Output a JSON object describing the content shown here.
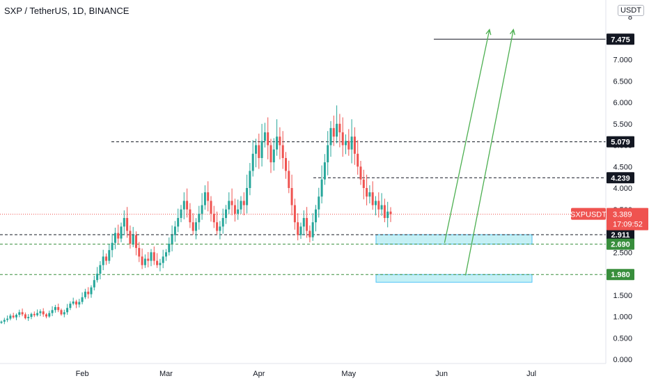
{
  "header": {
    "title": "SXP / TetherUS, 1D, BINANCE",
    "currency_button": "USDT"
  },
  "chart_data": {
    "type": "candlestick",
    "title": "SXP / TetherUS, 1D, BINANCE",
    "symbol": "SXPUSDT",
    "last_price": "3.389",
    "countdown": "17:09:52",
    "x_ticks": [
      "Feb",
      "Mar",
      "Apr",
      "May",
      "Jun",
      "Jul"
    ],
    "y_ticks": [
      "0.000",
      "0.500",
      "1.000",
      "1.500",
      "2.000",
      "2.500",
      "3.000",
      "3.500",
      "4.000",
      "4.500",
      "5.000",
      "5.500",
      "6.000",
      "6.500",
      "7.000",
      "7.500",
      "8"
    ],
    "ylim": [
      0,
      8
    ],
    "price_lines": [
      {
        "value": 7.475,
        "label": "7.475",
        "style": "solid",
        "color": "#131722"
      },
      {
        "value": 5.079,
        "label": "5.079",
        "style": "dashed",
        "color": "#131722"
      },
      {
        "value": 4.239,
        "label": "4.239",
        "style": "dashed",
        "color": "#131722"
      },
      {
        "value": 2.911,
        "label": "2.911",
        "style": "dashed",
        "color": "#131722"
      },
      {
        "value": 2.69,
        "label": "2.690",
        "style": "dashed",
        "color": "#388e3c"
      },
      {
        "value": 1.98,
        "label": "1.980",
        "style": "dashed",
        "color": "#388e3c"
      }
    ],
    "zones": [
      {
        "low": 2.69,
        "high": 2.911,
        "color": "#b2ebf2"
      },
      {
        "low": 1.8,
        "high": 1.98,
        "color": "#b2ebf2"
      }
    ],
    "colors": {
      "up": "#26a69a",
      "down": "#ef5350",
      "arrow": "#4caf50"
    },
    "closes": [
      0.88,
      0.92,
      0.95,
      1.02,
      0.98,
      1.04,
      1.1,
      1.05,
      0.96,
      0.99,
      1.06,
      1.03,
      1.08,
      1.12,
      1.05,
      1.0,
      1.08,
      1.15,
      1.22,
      1.15,
      1.05,
      1.1,
      1.2,
      1.3,
      1.35,
      1.28,
      1.34,
      1.45,
      1.58,
      1.52,
      1.68,
      1.85,
      2.0,
      2.2,
      2.4,
      2.3,
      2.55,
      2.72,
      2.95,
      2.82,
      3.1,
      3.3,
      3.0,
      2.7,
      2.9,
      2.6,
      2.4,
      2.2,
      2.35,
      2.3,
      2.5,
      2.3,
      2.2,
      2.25,
      2.4,
      2.5,
      2.7,
      2.9,
      3.1,
      3.3,
      3.5,
      3.7,
      3.5,
      3.2,
      3.0,
      3.2,
      3.4,
      3.6,
      3.9,
      3.7,
      3.4,
      3.2,
      3.0,
      3.1,
      3.3,
      3.5,
      3.7,
      3.6,
      3.4,
      3.5,
      3.7,
      3.6,
      4.0,
      4.4,
      4.8,
      5.0,
      4.7,
      5.1,
      5.3,
      5.0,
      4.6,
      4.9,
      5.2,
      5.0,
      4.7,
      4.4,
      4.0,
      3.6,
      3.2,
      2.9,
      3.1,
      3.3,
      3.0,
      2.85,
      3.2,
      3.5,
      3.8,
      4.2,
      4.6,
      5.0,
      5.4,
      5.2,
      5.5,
      5.3,
      5.0,
      5.1,
      4.9,
      5.2,
      4.8,
      4.5,
      4.2,
      4.0,
      3.8,
      3.9,
      3.6,
      3.7,
      3.5,
      3.6,
      3.3,
      3.45,
      3.389
    ],
    "arrows": [
      {
        "from": {
          "date_index": 148,
          "value": 2.72
        },
        "to": {
          "date_index": 163,
          "value": 7.7
        }
      },
      {
        "from": {
          "date_index": 155,
          "value": 1.96
        },
        "to": {
          "date_index": 171,
          "value": 7.7
        }
      }
    ]
  }
}
